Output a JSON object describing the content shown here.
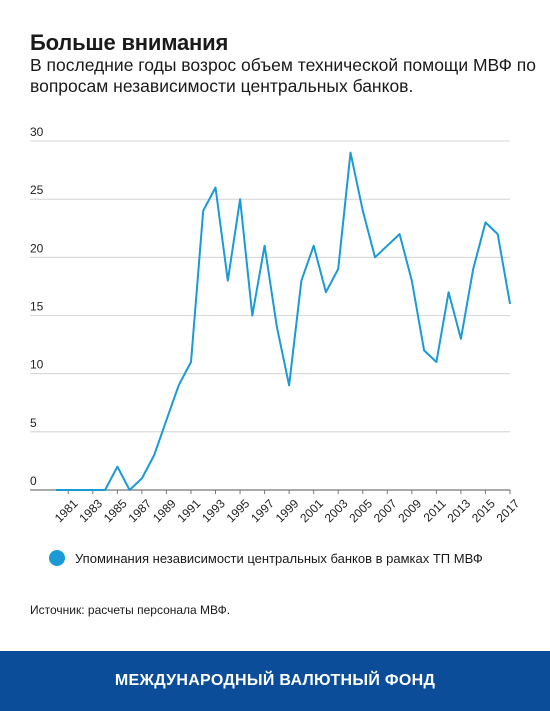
{
  "title": "Больше внимания",
  "subtitle": "В последние годы возрос объем технической помощи МВФ по вопросам независимости центральных банков.",
  "legend_label": "Упоминания независимости центральных банков в рамках ТП МВФ",
  "source": "Источник: расчеты персонала МВФ.",
  "footer": "МЕЖДУНАРОДНЫЙ ВАЛЮТНЫЙ ФОНД",
  "colors": {
    "line": "#1a9ad6",
    "footer_bg": "#0b4d99",
    "grid": "#cccccc"
  },
  "chart_data": {
    "type": "line",
    "x": [
      1980,
      1981,
      1982,
      1983,
      1984,
      1985,
      1986,
      1987,
      1988,
      1989,
      1990,
      1991,
      1992,
      1993,
      1994,
      1995,
      1996,
      1997,
      1998,
      1999,
      2000,
      2001,
      2002,
      2003,
      2004,
      2005,
      2006,
      2007,
      2008,
      2009,
      2010,
      2011,
      2012,
      2013,
      2014,
      2015,
      2016,
      2017
    ],
    "series": [
      {
        "name": "Упоминания независимости центральных банков в рамках ТП МВФ",
        "values": [
          0,
          0,
          0,
          0,
          0,
          2,
          0,
          1,
          3,
          6,
          9,
          11,
          24,
          26,
          18,
          25,
          15,
          21,
          14,
          9,
          18,
          21,
          17,
          19,
          29,
          24,
          20,
          21,
          22,
          18,
          12,
          11,
          17,
          13,
          19,
          23,
          22,
          16
        ]
      }
    ],
    "x_tick_labels": [
      "1981",
      "1983",
      "1985",
      "1987",
      "1989",
      "1991",
      "1993",
      "1995",
      "1997",
      "1999",
      "2001",
      "2003",
      "2005",
      "2007",
      "2009",
      "2011",
      "2013",
      "2015",
      "2017"
    ],
    "y_ticks": [
      0,
      5,
      10,
      15,
      20,
      25,
      30
    ],
    "ylim": [
      0,
      30
    ],
    "grid": true,
    "legend_position": "bottom"
  }
}
